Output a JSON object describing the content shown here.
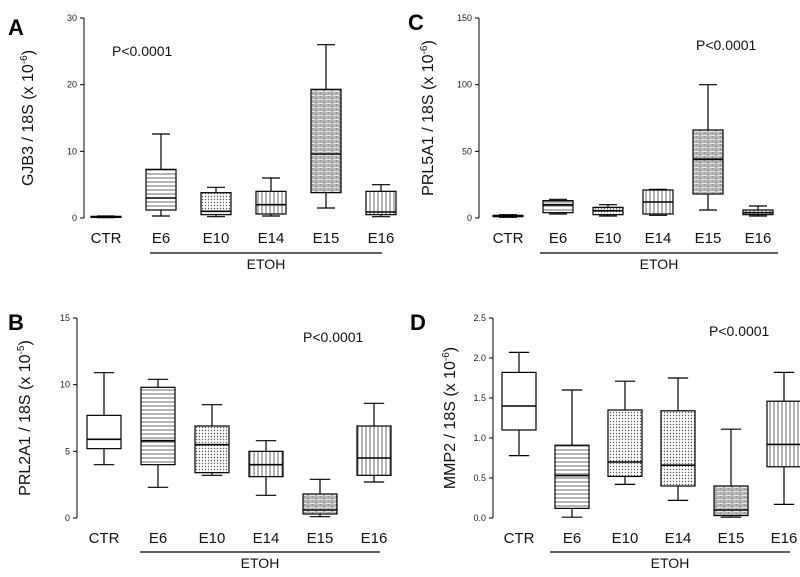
{
  "chart_data": [
    {
      "type": "box",
      "panel": "A",
      "ylabel_main": "GJB3 / 18S (x 10",
      "ylabel_exp": "-6",
      "ylabel_close": ")",
      "annotation": "P<0.0001",
      "group_label": "ETOH",
      "group_members": [
        "E6",
        "E10",
        "E14",
        "E15",
        "E16"
      ],
      "categories": [
        "CTR",
        "E6",
        "E10",
        "E14",
        "E15",
        "E16"
      ],
      "ylim": [
        0,
        30
      ],
      "yticks": [
        0,
        10,
        20,
        30
      ],
      "boxes": [
        {
          "min": 0.05,
          "q1": 0.1,
          "median": 0.15,
          "q3": 0.25,
          "max": 0.3,
          "pattern": "none"
        },
        {
          "min": 0.3,
          "q1": 1.2,
          "median": 3.0,
          "q3": 7.3,
          "max": 12.6,
          "pattern": "hlines"
        },
        {
          "min": 0.2,
          "q1": 0.5,
          "median": 1.0,
          "q3": 3.8,
          "max": 4.6,
          "pattern": "dots"
        },
        {
          "min": 0.3,
          "q1": 0.6,
          "median": 2.0,
          "q3": 4.0,
          "max": 6.0,
          "pattern": "vlines"
        },
        {
          "min": 1.5,
          "q1": 3.8,
          "median": 9.6,
          "q3": 19.3,
          "max": 26.0,
          "pattern": "bricks"
        },
        {
          "min": 0.2,
          "q1": 0.5,
          "median": 0.9,
          "q3": 4.0,
          "max": 5.0,
          "pattern": "vlines"
        }
      ]
    },
    {
      "type": "box",
      "panel": "C",
      "ylabel_main": "PRL5A1 / 18S (x 10",
      "ylabel_exp": "-6",
      "ylabel_close": ")",
      "annotation": "P<0.0001",
      "group_label": "ETOH",
      "group_members": [
        "E6",
        "E10",
        "E14",
        "E15",
        "E16"
      ],
      "categories": [
        "CTR",
        "E6",
        "E10",
        "E14",
        "E15",
        "E16"
      ],
      "ylim": [
        0,
        150
      ],
      "yticks": [
        0,
        50,
        100,
        150
      ],
      "boxes": [
        {
          "min": 0.5,
          "q1": 1.0,
          "median": 1.5,
          "q3": 2.0,
          "max": 2.5,
          "pattern": "none"
        },
        {
          "min": 3.0,
          "q1": 4.0,
          "median": 10.0,
          "q3": 13.0,
          "max": 14.0,
          "pattern": "hlines"
        },
        {
          "min": 1.5,
          "q1": 2.5,
          "median": 5.5,
          "q3": 8.0,
          "max": 10.0,
          "pattern": "dots"
        },
        {
          "min": 2.0,
          "q1": 3.0,
          "median": 12.0,
          "q3": 21.0,
          "max": 21.5,
          "pattern": "vlines"
        },
        {
          "min": 6.0,
          "q1": 18.0,
          "median": 44.0,
          "q3": 66.0,
          "max": 100.0,
          "pattern": "bricks"
        },
        {
          "min": 1.5,
          "q1": 2.5,
          "median": 4.0,
          "q3": 6.0,
          "max": 9.0,
          "pattern": "vlines"
        }
      ]
    },
    {
      "type": "box",
      "panel": "B",
      "ylabel_main": "PRL2A1 / 18S (x 10",
      "ylabel_exp": "-5",
      "ylabel_close": ")",
      "annotation": "P<0.0001",
      "group_label": "ETOH",
      "group_members": [
        "E6",
        "E10",
        "E14",
        "E15",
        "E16"
      ],
      "categories": [
        "CTR",
        "E6",
        "E10",
        "E14",
        "E15",
        "E16"
      ],
      "ylim": [
        0,
        15
      ],
      "yticks": [
        0,
        5,
        10,
        15
      ],
      "boxes": [
        {
          "min": 4.0,
          "q1": 5.2,
          "median": 5.9,
          "q3": 7.7,
          "max": 10.9,
          "pattern": "none"
        },
        {
          "min": 2.3,
          "q1": 4.0,
          "median": 5.8,
          "q3": 9.8,
          "max": 10.4,
          "pattern": "hlines"
        },
        {
          "min": 3.2,
          "q1": 3.4,
          "median": 5.5,
          "q3": 6.9,
          "max": 8.5,
          "pattern": "dots"
        },
        {
          "min": 1.7,
          "q1": 3.1,
          "median": 4.0,
          "q3": 5.0,
          "max": 5.8,
          "pattern": "vlines"
        },
        {
          "min": 0.1,
          "q1": 0.3,
          "median": 0.6,
          "q3": 1.8,
          "max": 2.9,
          "pattern": "bricks"
        },
        {
          "min": 2.7,
          "q1": 3.2,
          "median": 4.5,
          "q3": 6.9,
          "max": 8.6,
          "pattern": "vlines"
        }
      ]
    },
    {
      "type": "box",
      "panel": "D",
      "ylabel_main": "MMP2 / 18S (x 10",
      "ylabel_exp": "-6",
      "ylabel_close": ")",
      "annotation": "P<0.0001",
      "group_label": "ETOH",
      "group_members": [
        "E6",
        "E10",
        "E14",
        "E15",
        "E16"
      ],
      "categories": [
        "CTR",
        "E6",
        "E10",
        "E14",
        "E15",
        "E16"
      ],
      "ylim": [
        0,
        2.5
      ],
      "yticks": [
        0.0,
        0.5,
        1.0,
        1.5,
        2.0,
        2.5
      ],
      "boxes": [
        {
          "min": 0.78,
          "q1": 1.1,
          "median": 1.4,
          "q3": 1.82,
          "max": 2.07,
          "pattern": "none"
        },
        {
          "min": 0.01,
          "q1": 0.12,
          "median": 0.53,
          "q3": 0.91,
          "max": 1.6,
          "pattern": "hlines"
        },
        {
          "min": 0.42,
          "q1": 0.52,
          "median": 0.7,
          "q3": 1.35,
          "max": 1.71,
          "pattern": "dots"
        },
        {
          "min": 0.22,
          "q1": 0.4,
          "median": 0.66,
          "q3": 1.34,
          "max": 1.75,
          "pattern": "dots"
        },
        {
          "min": 0.01,
          "q1": 0.03,
          "median": 0.1,
          "q3": 0.4,
          "max": 1.11,
          "pattern": "bricks"
        },
        {
          "min": 0.17,
          "q1": 0.64,
          "median": 0.92,
          "q3": 1.46,
          "max": 1.82,
          "pattern": "vlines"
        }
      ]
    }
  ]
}
